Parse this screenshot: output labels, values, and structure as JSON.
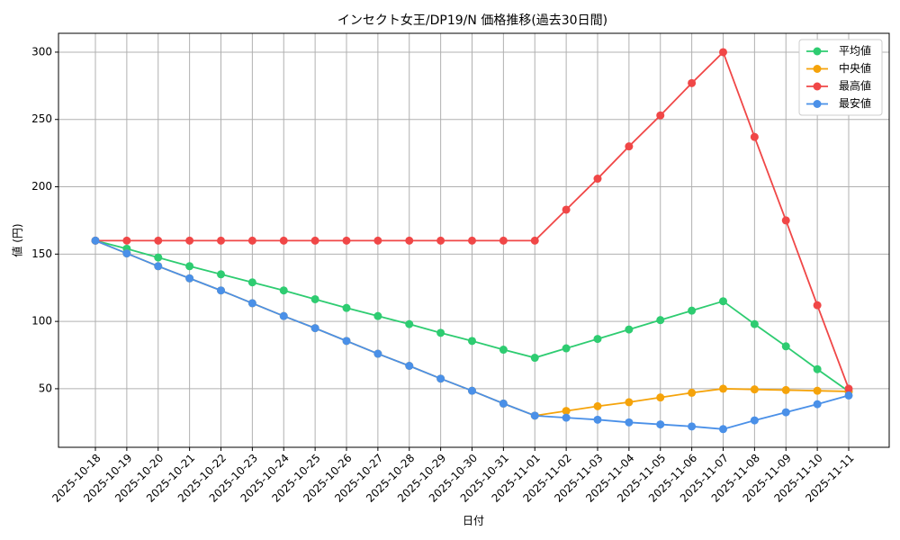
{
  "chart_data": {
    "type": "line",
    "title": "インセクト女王/DP19/N 価格推移(過去30日間)",
    "x_label": "日付",
    "y_label": "値 (円)",
    "categories": [
      "2025-10-18",
      "2025-10-19",
      "2025-10-20",
      "2025-10-21",
      "2025-10-22",
      "2025-10-23",
      "2025-10-24",
      "2025-10-25",
      "2025-10-26",
      "2025-10-27",
      "2025-10-28",
      "2025-10-29",
      "2025-10-30",
      "2025-10-31",
      "2025-11-01",
      "2025-11-02",
      "2025-11-03",
      "2025-11-04",
      "2025-11-05",
      "2025-11-06",
      "2025-11-07",
      "2025-11-08",
      "2025-11-09",
      "2025-11-10",
      "2025-11-11"
    ],
    "series": [
      {
        "name": "平均値",
        "color": "#2ecc71",
        "values": [
          160,
          154,
          147.5,
          141,
          135,
          129,
          123,
          116.5,
          110,
          104,
          98,
          91.5,
          85.5,
          79,
          73,
          80,
          87,
          94,
          101,
          108,
          115,
          98,
          81.5,
          64.5,
          48
        ]
      },
      {
        "name": "中央値",
        "color": "#f5a30a",
        "values": [
          160,
          150.5,
          141,
          132,
          123,
          113.5,
          104,
          95,
          85.5,
          76,
          67,
          57.5,
          48.5,
          39,
          30,
          33.5,
          37,
          40,
          43.5,
          47,
          50,
          49.5,
          49,
          48.5,
          48
        ]
      },
      {
        "name": "最高値",
        "color": "#f04747",
        "values": [
          160,
          160,
          160,
          160,
          160,
          160,
          160,
          160,
          160,
          160,
          160,
          160,
          160,
          160,
          160,
          183,
          206,
          230,
          253,
          277,
          300,
          237,
          175,
          112,
          50
        ]
      },
      {
        "name": "最安値",
        "color": "#4a90e8",
        "values": [
          160,
          150.5,
          141,
          132,
          123,
          113.5,
          104,
          95,
          85.5,
          76,
          67,
          57.5,
          48.5,
          39,
          30,
          28.5,
          27,
          25,
          23.5,
          22,
          20,
          26.5,
          32.5,
          38.5,
          45
        ]
      }
    ],
    "ylim": [
      6.5,
      314
    ],
    "yticks": [
      50,
      100,
      150,
      200,
      250,
      300
    ],
    "grid": true,
    "legend": "upper right"
  }
}
